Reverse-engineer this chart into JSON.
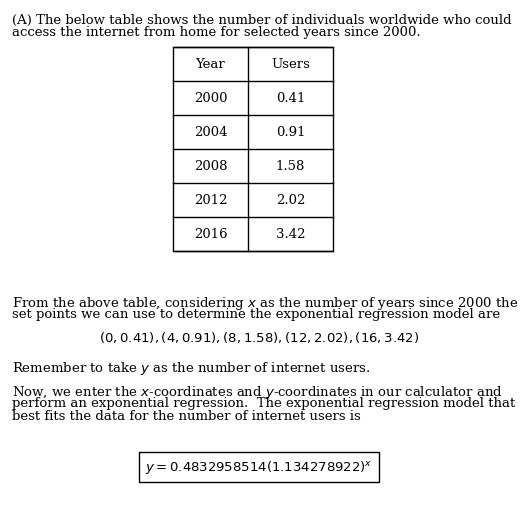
{
  "line1": "(A) The below table shows the number of individuals worldwide who could",
  "line2": "access the internet from home for selected years since 2000.",
  "table_headers": [
    "Year",
    "Users"
  ],
  "table_data": [
    [
      "2000",
      "0.41"
    ],
    [
      "2004",
      "0.91"
    ],
    [
      "2008",
      "1.58"
    ],
    [
      "2012",
      "2.02"
    ],
    [
      "2016",
      "3.42"
    ]
  ],
  "p1_line1": "From the above table, considering $x$ as the number of years since 2000 the",
  "p1_line2": "set points we can use to determine the exponential regression model are",
  "points_line": "$(0, 0.41), (4, 0.91), (8, 1.58), (12, 2.02), (16, 3.42)$",
  "p2": "Remember to take $y$ as the number of internet users.",
  "p3_line1": "Now, we enter the $x$-coordinates and $y$-coordinates in our calculator and",
  "p3_line2": "perform an exponential regression.  The exponential regression model that",
  "p3_line3": "best fits the data for the number of internet users is",
  "formula": "$y = 0.4832958514(1.134278922)^x$",
  "background_color": "#ffffff",
  "text_color": "#000000",
  "font_size": 9.5
}
